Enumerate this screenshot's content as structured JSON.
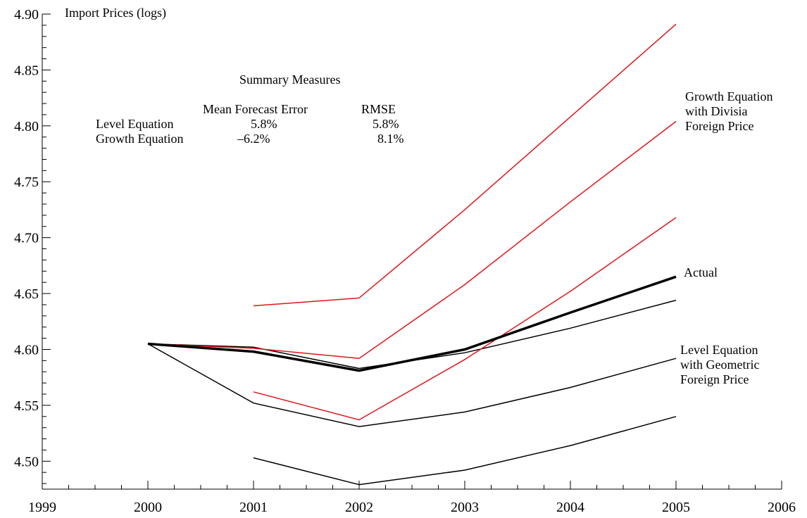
{
  "chart_data": {
    "type": "line",
    "ylabel_inside": "Import Prices (logs)",
    "xlim": [
      1999,
      2006
    ],
    "ylim": [
      4.475,
      4.9
    ],
    "x_ticks": [
      "1999",
      "2000",
      "2001",
      "2002",
      "2003",
      "2004",
      "2005",
      "2006"
    ],
    "y_ticks": [
      "4.50",
      "4.55",
      "4.60",
      "4.65",
      "4.70",
      "4.75",
      "4.80",
      "4.85",
      "4.90"
    ],
    "grid": false,
    "colors": {
      "actual": "#000000",
      "level": "#000000",
      "growth": "#e0141a"
    },
    "series": [
      {
        "group": "actual",
        "x": [
          2000,
          2001,
          2002,
          2003,
          2004,
          2005
        ],
        "values": [
          4.605,
          4.598,
          4.581,
          4.6,
          4.633,
          4.665
        ]
      },
      {
        "group": "level",
        "x": [
          2000,
          2001,
          2002,
          2003,
          2004,
          2005
        ],
        "values": [
          4.605,
          4.602,
          4.583,
          4.597,
          4.619,
          4.644
        ]
      },
      {
        "group": "level",
        "x": [
          2000,
          2001,
          2002,
          2003,
          2004,
          2005
        ],
        "values": [
          4.605,
          4.552,
          4.531,
          4.544,
          4.566,
          4.592
        ]
      },
      {
        "group": "level",
        "x": [
          2001,
          2002,
          2003,
          2004,
          2005
        ],
        "values": [
          4.503,
          4.479,
          4.492,
          4.514,
          4.54
        ]
      },
      {
        "group": "growth",
        "x": [
          2001,
          2002,
          2003,
          2004,
          2005
        ],
        "values": [
          4.639,
          4.646,
          4.725,
          4.808,
          4.891
        ]
      },
      {
        "group": "growth",
        "x": [
          2000,
          2001,
          2002,
          2003,
          2004,
          2005
        ],
        "values": [
          4.605,
          4.601,
          4.592,
          4.658,
          4.732,
          4.804
        ]
      },
      {
        "group": "growth",
        "x": [
          2001,
          2002,
          2003,
          2004,
          2005
        ],
        "values": [
          4.562,
          4.537,
          4.591,
          4.652,
          4.718
        ]
      }
    ],
    "annotations": {
      "summary_title": "Summary Measures",
      "col_mfe": "Mean Forecast Error",
      "col_rmse": "RMSE",
      "row1_label": "Level Equation",
      "row1_mfe": "5.8%",
      "row1_rmse": "5.8%",
      "row2_label": "Growth Equation",
      "row2_mfe": "–6.2%",
      "row2_rmse": "8.1%",
      "growth_label": [
        "Growth Equation",
        "with Divisia",
        "Foreign Price"
      ],
      "actual_label": "Actual",
      "level_label": [
        "Level Equation",
        "with Geometric",
        "Foreign Price"
      ]
    }
  }
}
